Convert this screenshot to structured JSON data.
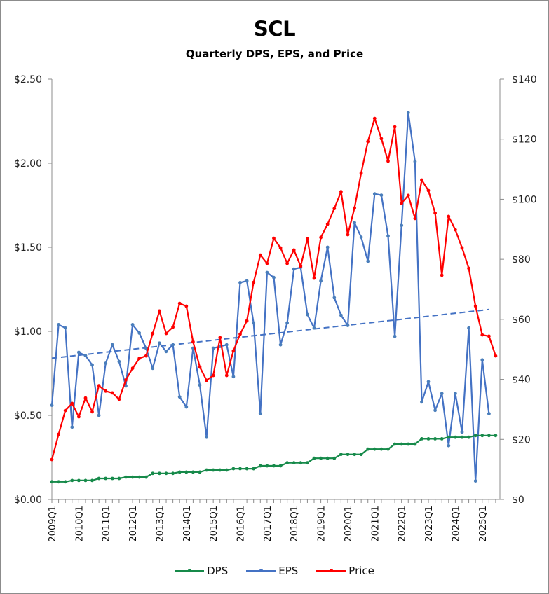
{
  "chart_data": {
    "type": "line",
    "title": "SCL",
    "subtitle": "Quarterly DPS, EPS, and Price",
    "xlabel": "",
    "ylabel_left": "",
    "ylabel_right": "",
    "grid": false,
    "legend_position": "bottom",
    "x_tick_labels": [
      "2009Q1",
      "2010Q1",
      "2011Q1",
      "2012Q1",
      "2013Q1",
      "2014Q1",
      "2015Q1",
      "2016Q1",
      "2017Q1",
      "2018Q1",
      "2019Q1",
      "2020Q1",
      "2021Q1",
      "2022Q1",
      "2023Q1",
      "2024Q1",
      "2025Q1"
    ],
    "categories": [
      "2009Q1",
      "2009Q2",
      "2009Q3",
      "2009Q4",
      "2010Q1",
      "2010Q2",
      "2010Q3",
      "2010Q4",
      "2011Q1",
      "2011Q2",
      "2011Q3",
      "2011Q4",
      "2012Q1",
      "2012Q2",
      "2012Q3",
      "2012Q4",
      "2013Q1",
      "2013Q2",
      "2013Q3",
      "2013Q4",
      "2014Q1",
      "2014Q2",
      "2014Q3",
      "2014Q4",
      "2015Q1",
      "2015Q2",
      "2015Q3",
      "2015Q4",
      "2016Q1",
      "2016Q2",
      "2016Q3",
      "2016Q4",
      "2017Q1",
      "2017Q2",
      "2017Q3",
      "2017Q4",
      "2018Q1",
      "2018Q2",
      "2018Q3",
      "2018Q4",
      "2019Q1",
      "2019Q2",
      "2019Q3",
      "2019Q4",
      "2020Q1",
      "2020Q2",
      "2020Q3",
      "2020Q4",
      "2021Q1",
      "2021Q2",
      "2021Q3",
      "2021Q4",
      "2022Q1",
      "2022Q2",
      "2022Q3",
      "2022Q4",
      "2023Q1",
      "2023Q2",
      "2023Q3",
      "2023Q4",
      "2024Q1",
      "2024Q2",
      "2024Q3",
      "2024Q4",
      "2025Q1",
      "2025Q2",
      "2025Q3"
    ],
    "y_left": {
      "min": 0,
      "max": 2.5,
      "ticks": [
        0,
        0.5,
        1.0,
        1.5,
        2.0,
        2.5
      ],
      "tick_labels": [
        "$0.00",
        "$0.50",
        "$1.00",
        "$1.50",
        "$2.00",
        "$2.50"
      ]
    },
    "y_right": {
      "min": 0,
      "max": 140,
      "ticks": [
        0,
        20,
        40,
        60,
        80,
        100,
        120,
        140
      ],
      "tick_labels": [
        "$0",
        "$20",
        "$40",
        "$60",
        "$80",
        "$100",
        "$120",
        "$140"
      ]
    },
    "series": [
      {
        "name": "DPS",
        "axis": "left",
        "color": "#168a4a",
        "values": [
          0.105,
          0.105,
          0.105,
          0.113,
          0.113,
          0.113,
          0.113,
          0.125,
          0.125,
          0.125,
          0.125,
          0.133,
          0.133,
          0.133,
          0.133,
          0.155,
          0.155,
          0.155,
          0.155,
          0.163,
          0.163,
          0.163,
          0.163,
          0.175,
          0.175,
          0.175,
          0.175,
          0.183,
          0.183,
          0.183,
          0.183,
          0.2,
          0.2,
          0.2,
          0.2,
          0.218,
          0.218,
          0.218,
          0.218,
          0.245,
          0.245,
          0.245,
          0.245,
          0.268,
          0.268,
          0.268,
          0.268,
          0.299,
          0.299,
          0.299,
          0.299,
          0.329,
          0.329,
          0.329,
          0.329,
          0.361,
          0.361,
          0.361,
          0.361,
          0.37,
          0.37,
          0.37,
          0.37,
          0.38,
          0.38,
          0.38,
          0.38
        ]
      },
      {
        "name": "EPS",
        "axis": "left",
        "color": "#4472c4",
        "values": [
          0.56,
          1.04,
          1.02,
          0.43,
          0.875,
          0.855,
          0.8,
          0.5,
          0.81,
          0.92,
          0.82,
          0.675,
          1.04,
          0.99,
          0.9,
          0.78,
          0.93,
          0.88,
          0.92,
          0.61,
          0.55,
          0.9,
          0.68,
          0.37,
          0.9,
          0.91,
          0.92,
          0.73,
          1.29,
          1.3,
          1.05,
          0.51,
          1.35,
          1.32,
          0.92,
          1.05,
          1.37,
          1.38,
          1.1,
          1.02,
          1.3,
          1.5,
          1.2,
          1.096,
          1.035,
          1.646,
          1.56,
          1.417,
          1.818,
          1.81,
          1.567,
          0.97,
          1.63,
          2.3,
          2.01,
          0.58,
          0.7,
          0.53,
          0.63,
          0.32,
          0.63,
          0.4,
          1.02,
          0.11,
          0.83,
          0.51,
          null
        ]
      },
      {
        "name": "Price",
        "axis": "right",
        "color": "#ff0000",
        "values": [
          13.3,
          21.7,
          29.6,
          32.0,
          27.5,
          33.8,
          29.2,
          37.9,
          36.1,
          35.5,
          33.4,
          39.8,
          43.7,
          47.0,
          47.8,
          55.3,
          62.8,
          55.3,
          57.4,
          65.3,
          64.4,
          52.5,
          44.1,
          39.7,
          41.3,
          53.9,
          41.3,
          49.5,
          55.1,
          59.5,
          72.3,
          81.4,
          78.6,
          87.0,
          83.8,
          78.6,
          83.1,
          77.7,
          86.8,
          73.7,
          87.3,
          91.7,
          96.9,
          102.5,
          88.2,
          97.1,
          108.7,
          119.2,
          126.9,
          120.2,
          112.7,
          124.1,
          98.7,
          101.3,
          93.6,
          106.4,
          102.9,
          95.4,
          74.7,
          94.3,
          89.8,
          83.8,
          77.0,
          64.4,
          54.8,
          54.4,
          47.8
        ]
      }
    ],
    "trendline": {
      "series": "EPS",
      "type": "linear",
      "style": "dashed",
      "color": "#4472c4",
      "start": {
        "category": "2009Q1",
        "value": 0.84
      },
      "end": {
        "category": "2025Q2",
        "value": 1.13
      }
    }
  },
  "legend": {
    "items": [
      {
        "label": "DPS",
        "color": "#168a4a"
      },
      {
        "label": "EPS",
        "color": "#4472c4"
      },
      {
        "label": "Price",
        "color": "#ff0000"
      }
    ]
  }
}
